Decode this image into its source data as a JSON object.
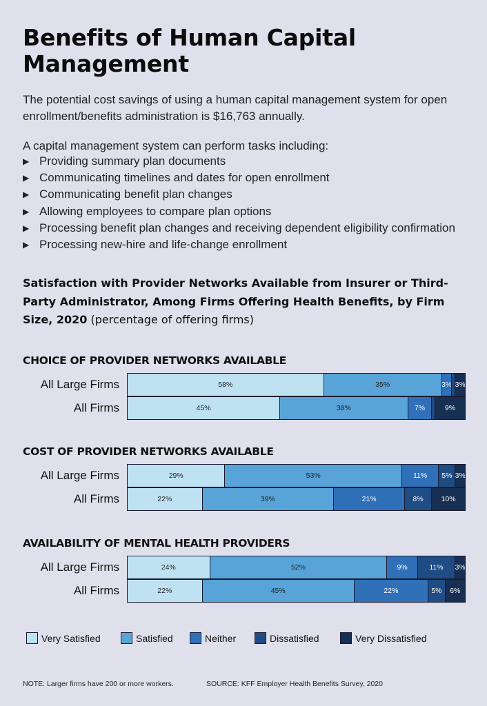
{
  "title": "Benefits of Human Capital Management",
  "intro": "The potential cost savings of using a human capital management system for open enrollment/benefits administration is $16,763 annually.",
  "tasks_lead": "A capital management system can perform tasks including:",
  "tasks": [
    "Providing summary plan documents",
    "Communicating timelines and dates for open enrollment",
    "Communicating benefit plan changes",
    "Allowing employees to compare plan options",
    "Processing benefit plan changes and receiving dependent eligibility confirmation",
    "Processing new-hire and life-change enrollment"
  ],
  "bullet_glyph": "▶",
  "chart_heading_bold": "Satisfaction with Provider Networks Available from Insurer or Third-Party Administrator, Among Firms Offering Health Benefits, by Firm Size, 2020",
  "chart_heading_normal": "(percentage of offering firms)",
  "chart_data": {
    "type": "bar",
    "orientation": "horizontal",
    "stacked": true,
    "unit": "%",
    "legend_position": "bottom",
    "categories": [
      "Very Satisfied",
      "Satisfied",
      "Neither",
      "Dissatisfied",
      "Very Dissatisfied"
    ],
    "colors": [
      "#bfe2f3",
      "#58a4d9",
      "#2f70b9",
      "#1f4c85",
      "#162f52"
    ],
    "label_colors": [
      "#222222",
      "#222222",
      "#ffffff",
      "#ffffff",
      "#ffffff"
    ],
    "sections": [
      {
        "title": "CHOICE OF PROVIDER NETWORKS AVAILABLE",
        "rows": [
          {
            "label": "All Large Firms",
            "values": [
              58,
              35,
              3,
              1,
              3
            ],
            "labels": [
              "58%",
              "35%",
              "3%",
              "",
              "3%"
            ]
          },
          {
            "label": "All Firms",
            "values": [
              45,
              38,
              7,
              1,
              9
            ],
            "labels": [
              "45%",
              "38%",
              "7%",
              "",
              "9%"
            ]
          }
        ]
      },
      {
        "title": "COST OF PROVIDER NETWORKS AVAILABLE",
        "rows": [
          {
            "label": "All Large Firms",
            "values": [
              29,
              53,
              11,
              5,
              3
            ],
            "labels": [
              "29%",
              "53%",
              "11%",
              "5%",
              "3%"
            ]
          },
          {
            "label": "All Firms",
            "values": [
              22,
              39,
              21,
              8,
              10
            ],
            "labels": [
              "22%",
              "39%",
              "21%",
              "8%",
              "10%"
            ]
          }
        ]
      },
      {
        "title": "AVAILABILITY OF MENTAL HEALTH PROVIDERS",
        "rows": [
          {
            "label": "All Large Firms",
            "values": [
              24,
              52,
              9,
              11,
              3
            ],
            "labels": [
              "24%",
              "52%",
              "9%",
              "11%",
              "3%"
            ]
          },
          {
            "label": "All Firms",
            "values": [
              22,
              45,
              22,
              5,
              6
            ],
            "labels": [
              "22%",
              "45%",
              "22%",
              "5%",
              "6%"
            ]
          }
        ]
      }
    ]
  },
  "footer": {
    "note": "NOTE: Larger firms have 200 or more workers.",
    "source": "SOURCE: KFF Employer Health Benefits Survey, 2020"
  }
}
